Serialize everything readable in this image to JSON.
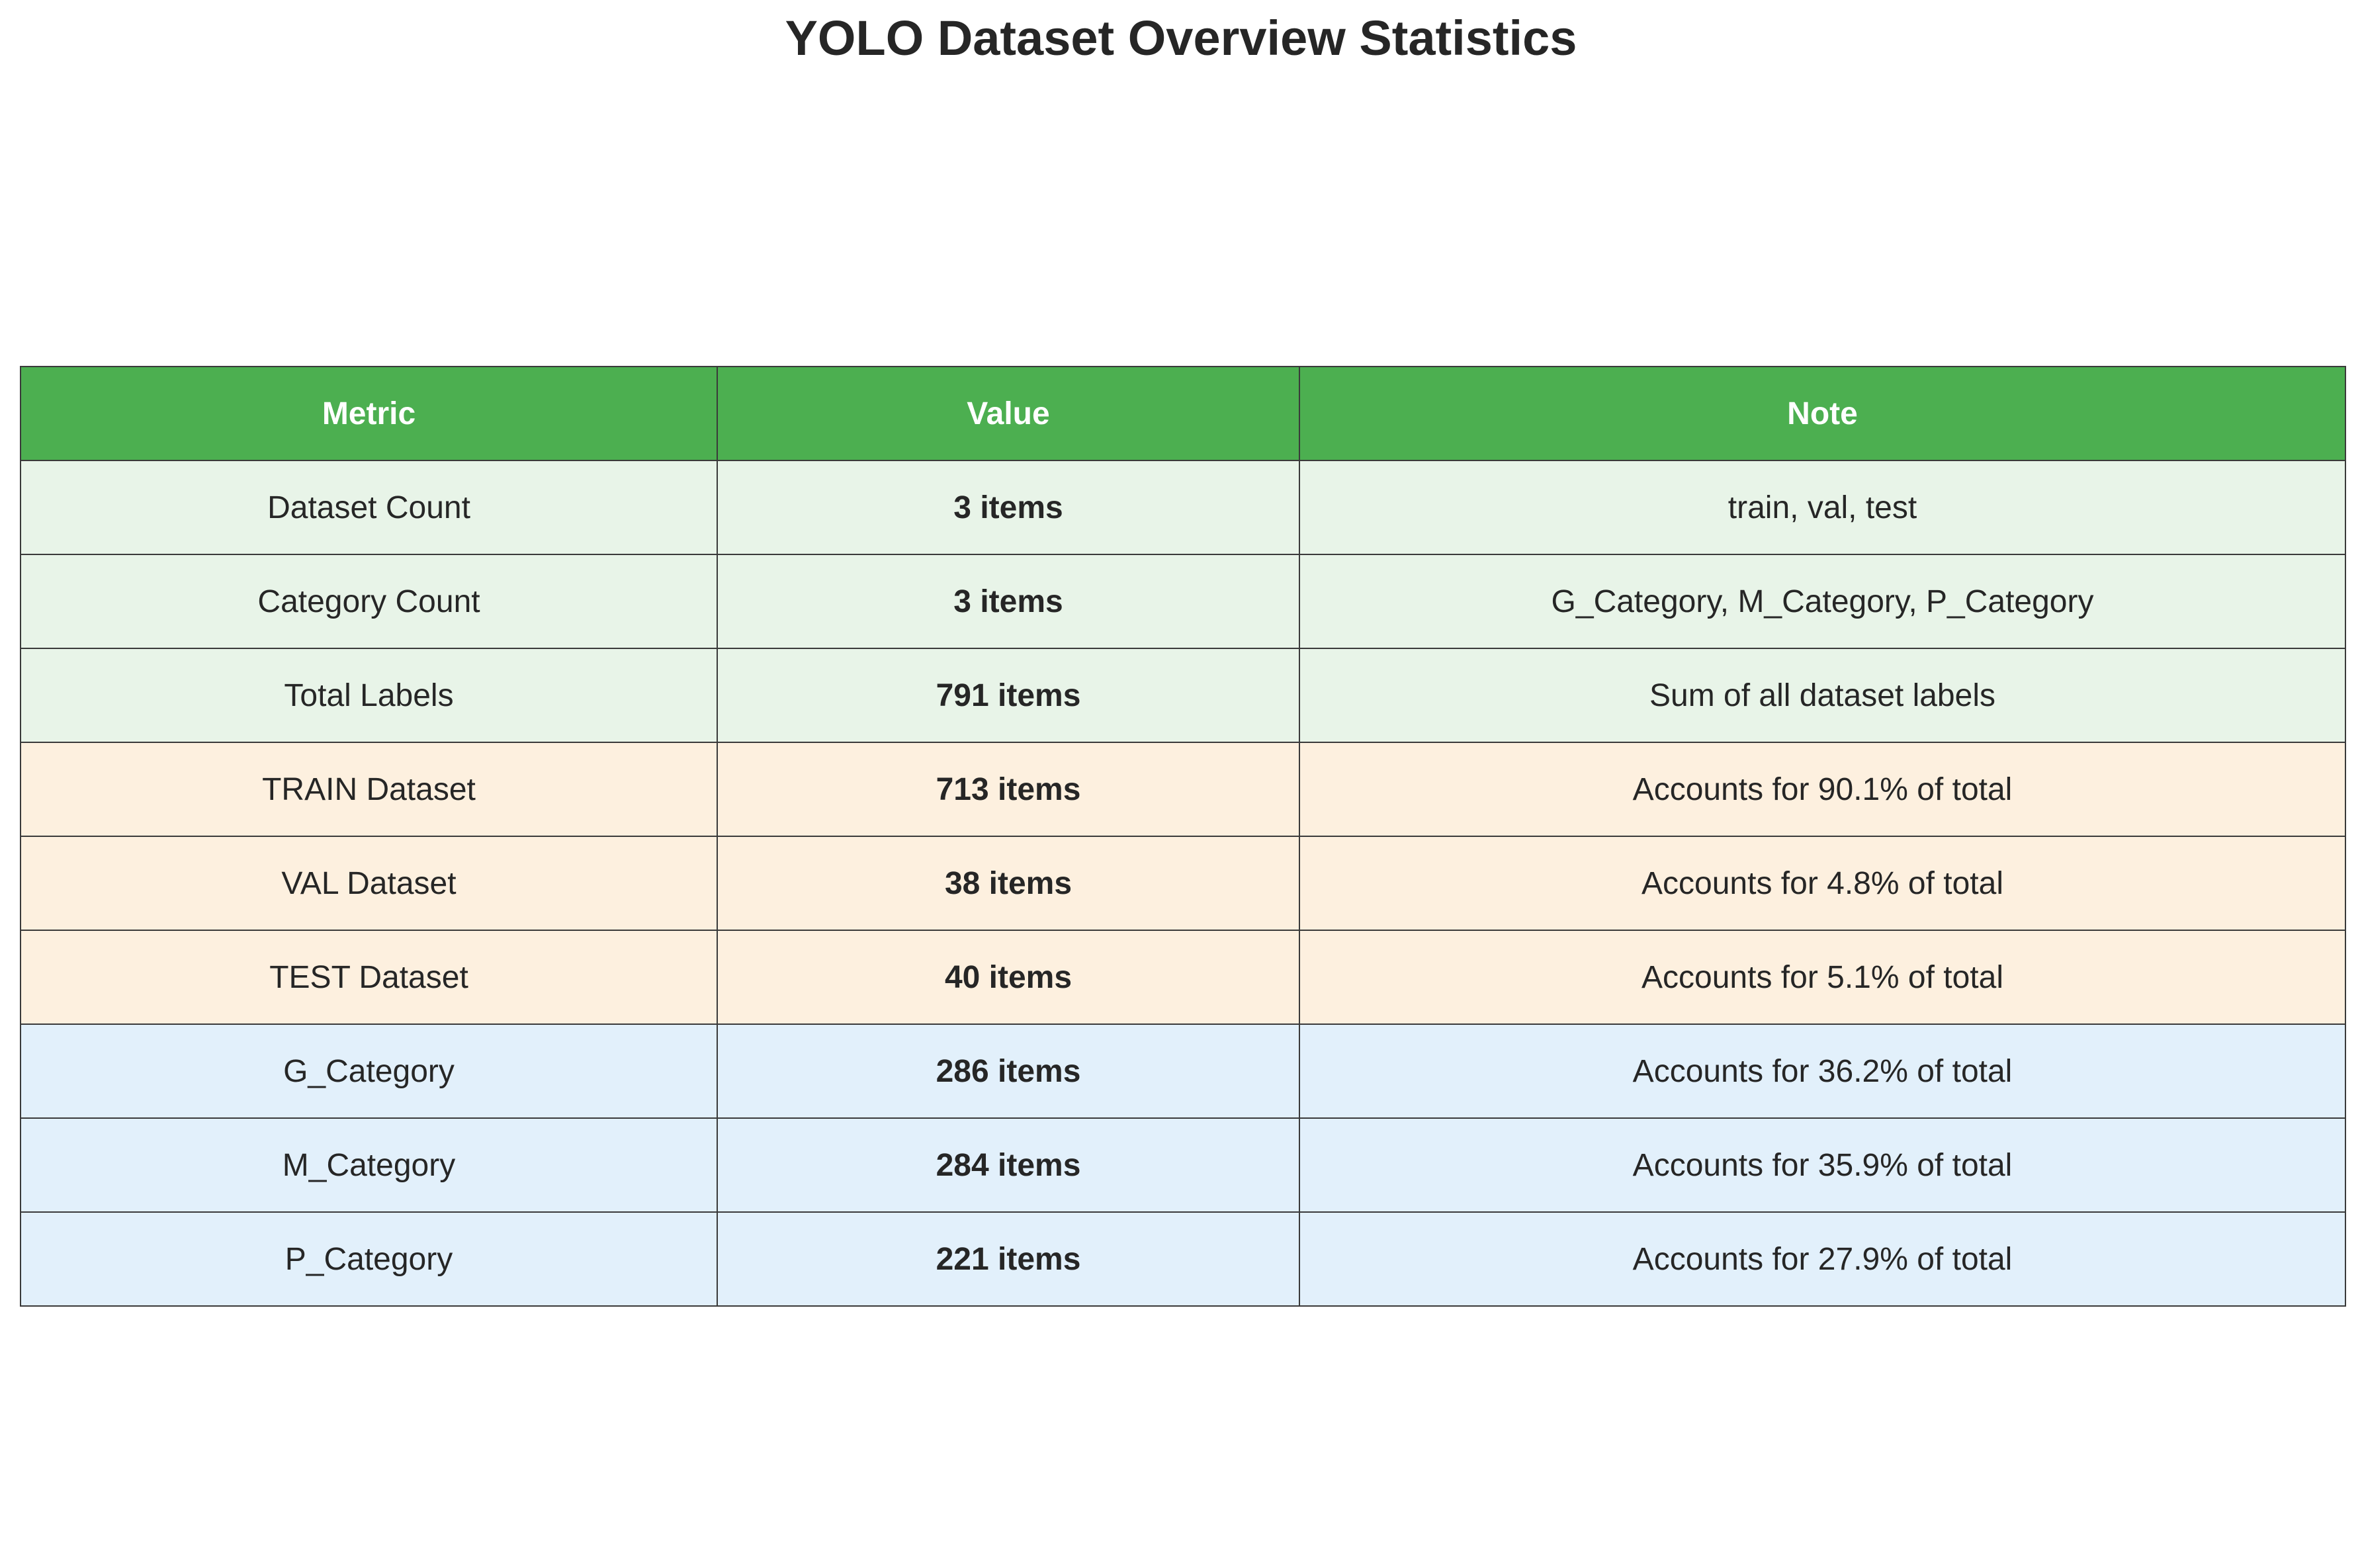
{
  "chart_data": {
    "type": "table",
    "title": "YOLO Dataset Overview Statistics",
    "columns": [
      "Metric",
      "Value",
      "Note"
    ],
    "rows": [
      {
        "group": "overall",
        "metric": "Dataset Count",
        "value": "3 items",
        "note": "train, val, test"
      },
      {
        "group": "overall",
        "metric": "Category Count",
        "value": "3 items",
        "note": "G_Category, M_Category, P_Category"
      },
      {
        "group": "overall",
        "metric": "Total Labels",
        "value": "791 items",
        "note": "Sum of all dataset labels"
      },
      {
        "group": "split",
        "metric": "TRAIN Dataset",
        "value": "713 items",
        "note": "Accounts for 90.1% of total"
      },
      {
        "group": "split",
        "metric": "VAL Dataset",
        "value": "38 items",
        "note": "Accounts for 4.8% of total"
      },
      {
        "group": "split",
        "metric": "TEST Dataset",
        "value": "40 items",
        "note": "Accounts for 5.1% of total"
      },
      {
        "group": "category",
        "metric": "G_Category",
        "value": "286 items",
        "note": "Accounts for 36.2% of total"
      },
      {
        "group": "category",
        "metric": "M_Category",
        "value": "284 items",
        "note": "Accounts for 35.9% of total"
      },
      {
        "group": "category",
        "metric": "P_Category",
        "value": "221 items",
        "note": "Accounts for 27.9% of total"
      }
    ],
    "colors": {
      "header": "#4caf50",
      "overall": "#e8f4e8",
      "split": "#fdf0df",
      "category": "#e2f0fb"
    }
  }
}
